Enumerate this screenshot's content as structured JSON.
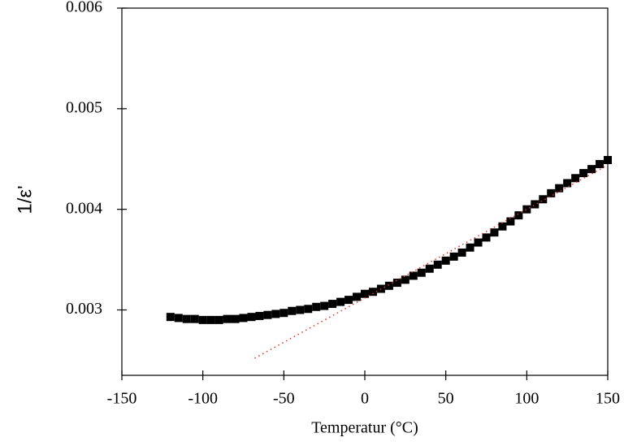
{
  "chart_data": {
    "type": "scatter",
    "x_label": "Temperatur (°C)",
    "y_label": "1/ε'",
    "xlim": [
      -150,
      150
    ],
    "xticks": [
      -150,
      -100,
      -50,
      0,
      50,
      100,
      150
    ],
    "ylim": [
      0.00235,
      0.006
    ],
    "yticks": [
      0.003,
      0.004,
      0.005,
      0.006
    ],
    "series": [
      {
        "marker": "square",
        "color": "#000000",
        "x": [
          -120,
          -115,
          -110,
          -105,
          -100,
          -95,
          -90,
          -85,
          -80,
          -75,
          -70,
          -65,
          -60,
          -55,
          -50,
          -45,
          -40,
          -35,
          -30,
          -25,
          -20,
          -15,
          -10,
          -5,
          0,
          5,
          10,
          15,
          20,
          25,
          30,
          35,
          40,
          45,
          50,
          55,
          60,
          65,
          70,
          75,
          80,
          85,
          90,
          95,
          100,
          105,
          110,
          115,
          120,
          125,
          130,
          135,
          140,
          145,
          150
        ],
        "values": [
          0.00293,
          0.00292,
          0.00291,
          0.00291,
          0.0029,
          0.0029,
          0.0029,
          0.00291,
          0.00291,
          0.00292,
          0.00293,
          0.00294,
          0.00295,
          0.00296,
          0.00297,
          0.00299,
          0.003,
          0.00301,
          0.00303,
          0.00304,
          0.00306,
          0.00308,
          0.0031,
          0.00313,
          0.00316,
          0.00318,
          0.00321,
          0.00324,
          0.00327,
          0.0033,
          0.00334,
          0.00337,
          0.00341,
          0.00345,
          0.00349,
          0.00353,
          0.00357,
          0.00362,
          0.00367,
          0.00372,
          0.00377,
          0.00383,
          0.00388,
          0.00394,
          0.004,
          0.00405,
          0.0041,
          0.00416,
          0.00421,
          0.00426,
          0.00431,
          0.00436,
          0.0044,
          0.00445,
          0.00449
        ]
      },
      {
        "marker": "dotted-line",
        "color": "#e8302a",
        "x": [
          -68,
          150
        ],
        "values": [
          0.00252,
          0.00444
        ]
      }
    ]
  }
}
